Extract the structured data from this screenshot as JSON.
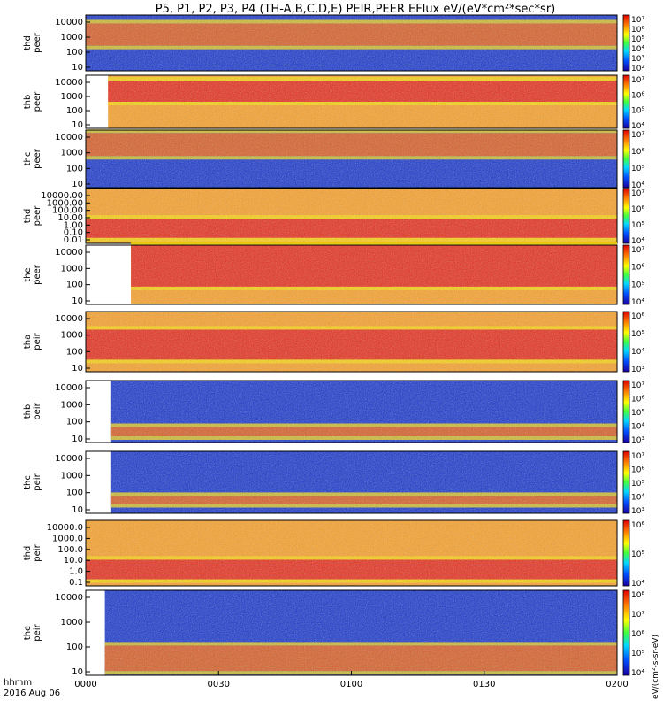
{
  "chart_data": {
    "type": "heatmap",
    "title": "P5, P1, P2, P3, P4 (TH-A,B,C,D,E) PEIR,PEER EFlux eV/(eV*cm²*sec*sr)",
    "x_axis": {
      "label_line1": "hhmm",
      "label_line2": "2016 Aug 06",
      "range": [
        "0000",
        "0200"
      ],
      "ticks": [
        "0000",
        "0030",
        "0100",
        "0130",
        "0200"
      ]
    },
    "colorbar_label": "eV/(cm²-s-sr-eV)",
    "panels": [
      {
        "label": [
          "thd",
          "peer"
        ],
        "yticks": [
          "10",
          "100",
          "1000",
          "10000"
        ],
        "cb": [
          "10²",
          "10³",
          "10⁴",
          "10⁵",
          "10⁶",
          "10⁷"
        ],
        "data_start": 0.0,
        "band": [
          0.45,
          0.85
        ],
        "noise": "high"
      },
      {
        "label": [
          "thb",
          "peer"
        ],
        "yticks": [
          "10",
          "100",
          "1000",
          "10000"
        ],
        "cb": [
          "10⁴",
          "10⁵",
          "10⁶",
          "10⁷"
        ],
        "data_start": 0.042,
        "band": [
          0.5,
          0.9
        ],
        "noise": "low"
      },
      {
        "label": [
          "thc",
          "peer"
        ],
        "yticks": [
          "10",
          "100",
          "1000",
          "10000"
        ],
        "cb": [
          "10⁴",
          "10⁵",
          "10⁶",
          "10⁷"
        ],
        "data_start": 0.0,
        "band": [
          0.55,
          0.95
        ],
        "noise": "high"
      },
      {
        "label": [
          "thd",
          "peer"
        ],
        "yticks": [
          "0.01",
          "0.10",
          "1.00",
          "10.00",
          "100.00",
          "1000.00",
          "10000.00"
        ],
        "cb": [
          "10⁴",
          "10⁵",
          "10⁶",
          "10⁷"
        ],
        "data_start": 0.0,
        "band": [
          0.1,
          0.45
        ],
        "noise": "low"
      },
      {
        "label": [
          "the",
          "peer"
        ],
        "yticks": [
          "10",
          "100",
          "1000",
          "10000"
        ],
        "cb": [
          "10⁴",
          "10⁵",
          "10⁶",
          "10⁷"
        ],
        "data_start": 0.085,
        "band": [
          0.3,
          1.0
        ],
        "noise": "low"
      },
      {
        "label": [
          "tha",
          "peir"
        ],
        "yticks": [
          "10",
          "100",
          "1000",
          "10000"
        ],
        "cb": [
          "10³",
          "10⁴",
          "10⁵",
          "10⁶"
        ],
        "data_start": 0.0,
        "band": [
          0.2,
          0.7
        ],
        "noise": "low"
      },
      {
        "label": [
          "thb",
          "peir"
        ],
        "yticks": [
          "10",
          "100",
          "1000",
          "10000"
        ],
        "cb": [
          "10³",
          "10⁴",
          "10⁵",
          "10⁶",
          "10⁷"
        ],
        "data_start": 0.048,
        "band": [
          0.1,
          0.25
        ],
        "noise": "high"
      },
      {
        "label": [
          "thc",
          "peir"
        ],
        "yticks": [
          "10",
          "100",
          "1000",
          "10000"
        ],
        "cb": [
          "10³",
          "10⁴",
          "10⁵",
          "10⁶",
          "10⁷"
        ],
        "data_start": 0.048,
        "band": [
          0.15,
          0.28
        ],
        "noise": "high"
      },
      {
        "label": [
          "thd",
          "peir"
        ],
        "yticks": [
          "0.1",
          "1.0",
          "10.0",
          "100.0",
          "1000.0",
          "10000.0"
        ],
        "cb": [
          "10⁴",
          "10⁵",
          "10⁶"
        ],
        "data_start": 0.0,
        "band": [
          0.1,
          0.4
        ],
        "noise": "low"
      },
      {
        "label": [
          "the",
          "peir"
        ],
        "yticks": [
          "10",
          "100",
          "1000",
          "10000"
        ],
        "cb": [
          "10⁴",
          "10⁵",
          "10⁶",
          "10⁷",
          "10⁸"
        ],
        "data_start": 0.036,
        "band": [
          0.05,
          0.35
        ],
        "noise": "high"
      }
    ]
  }
}
